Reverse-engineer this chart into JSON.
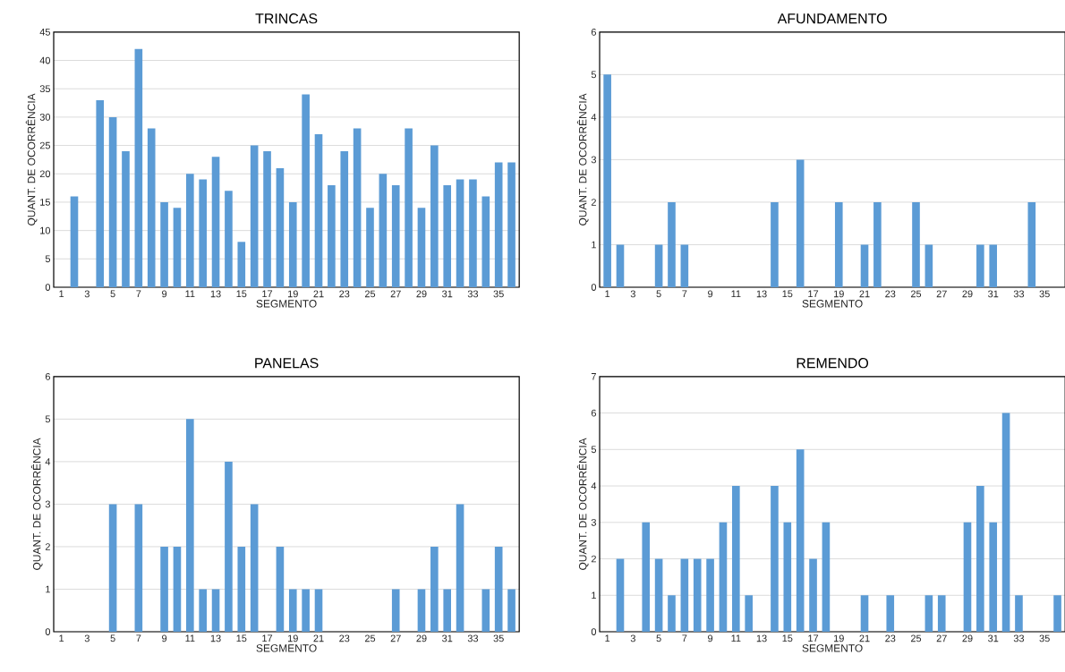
{
  "chart_data": [
    {
      "type": "bar",
      "title": "TRINCAS",
      "xlabel": "SEGMENTO",
      "ylabel": "QUANT. DE OCORRÊNCIA",
      "color": "#5b9bd5",
      "grid": "y",
      "categories": [
        "1",
        null,
        "3",
        null,
        "5",
        null,
        "7",
        null,
        "9",
        null,
        "11",
        null,
        "13",
        null,
        "15",
        null,
        "17",
        null,
        "19",
        null,
        "21",
        null,
        "23",
        null,
        "25",
        null,
        "27",
        null,
        "29",
        null,
        "31",
        null,
        "33",
        null,
        "35",
        null
      ],
      "values": [
        0,
        16,
        0,
        33,
        30,
        24,
        42,
        28,
        15,
        14,
        20,
        19,
        23,
        17,
        8,
        25,
        24,
        21,
        15,
        34,
        27,
        18,
        24,
        28,
        14,
        20,
        18,
        28,
        14,
        25,
        18,
        19,
        19,
        16,
        22,
        22
      ],
      "ylim": [
        0,
        45
      ],
      "yticks": [
        0,
        5,
        10,
        15,
        20,
        25,
        30,
        35,
        40,
        45
      ]
    },
    {
      "type": "bar",
      "title": "AFUNDAMENTO",
      "xlabel": "SEGMENTO",
      "ylabel": "QUANT. DE OCORRÊNCIA",
      "color": "#5b9bd5",
      "grid": "y",
      "categories": [
        "1",
        null,
        "3",
        null,
        "5",
        null,
        "7",
        null,
        "9",
        null,
        "11",
        null,
        "13",
        null,
        "15",
        null,
        "17",
        null,
        "19",
        null,
        "21",
        null,
        "23",
        null,
        "25",
        null,
        "27",
        null,
        "29",
        null,
        "31",
        null,
        "33",
        null,
        "35",
        null
      ],
      "values": [
        5,
        1,
        0,
        0,
        1,
        2,
        1,
        0,
        0,
        0,
        0,
        0,
        0,
        2,
        0,
        3,
        0,
        0,
        2,
        0,
        1,
        2,
        0,
        0,
        2,
        1,
        0,
        0,
        0,
        1,
        1,
        0,
        0,
        2,
        0,
        null
      ],
      "ylim": [
        0,
        6
      ],
      "yticks": [
        0,
        1,
        2,
        3,
        4,
        5,
        6
      ]
    },
    {
      "type": "bar",
      "title": "PANELAS",
      "xlabel": "SEGMENTO",
      "ylabel": "QUANT. DE OCORRÊNCIA",
      "color": "#5b9bd5",
      "grid": "y",
      "categories": [
        "1",
        null,
        "3",
        null,
        "5",
        null,
        "7",
        null,
        "9",
        null,
        "11",
        null,
        "13",
        null,
        "15",
        null,
        "17",
        null,
        "19",
        null,
        "21",
        null,
        "23",
        null,
        "25",
        null,
        "27",
        null,
        "29",
        null,
        "31",
        null,
        "33",
        null,
        "35",
        null
      ],
      "values": [
        0,
        0,
        0,
        0,
        3,
        0,
        3,
        0,
        2,
        2,
        5,
        1,
        1,
        4,
        2,
        3,
        0,
        2,
        1,
        1,
        1,
        0,
        0,
        0,
        0,
        0,
        1,
        0,
        1,
        2,
        1,
        3,
        0,
        1,
        2,
        1
      ],
      "ylim": [
        0,
        6
      ],
      "yticks": [
        0,
        1,
        2,
        3,
        4,
        5,
        6
      ]
    },
    {
      "type": "bar",
      "title": "REMENDO",
      "xlabel": "SEGMENTO",
      "ylabel": "QUANT. DE OCORRÊNCIA",
      "color": "#5b9bd5",
      "grid": "y",
      "categories": [
        "1",
        null,
        "3",
        null,
        "5",
        null,
        "7",
        null,
        "9",
        null,
        "11",
        null,
        "13",
        null,
        "15",
        null,
        "17",
        null,
        "19",
        null,
        "21",
        null,
        "23",
        null,
        "25",
        null,
        "27",
        null,
        "29",
        null,
        "31",
        null,
        "33",
        null,
        "35",
        null
      ],
      "values": [
        0,
        2,
        0,
        3,
        2,
        1,
        2,
        2,
        2,
        3,
        4,
        1,
        0,
        4,
        3,
        5,
        2,
        3,
        0,
        0,
        1,
        0,
        1,
        0,
        0,
        1,
        1,
        0,
        3,
        4,
        3,
        6,
        1,
        0,
        0,
        1
      ],
      "ylim": [
        0,
        7
      ],
      "yticks": [
        0,
        1,
        2,
        3,
        4,
        5,
        6,
        7
      ]
    }
  ]
}
